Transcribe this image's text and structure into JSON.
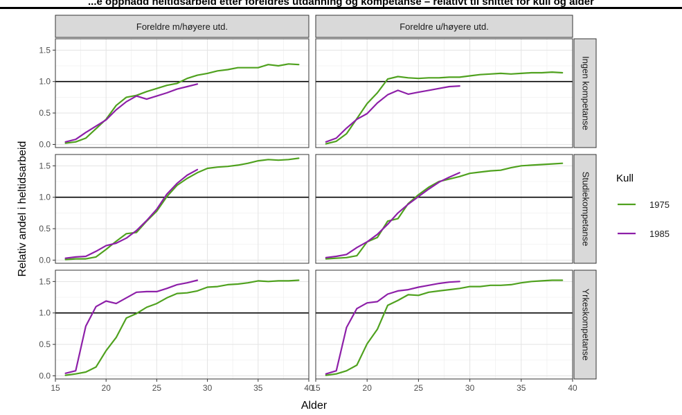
{
  "title": "...e oppnådd heltidsarbeid etter foreldres utdanning og kompetanse – relativt til snittet for kull og alder",
  "chart_data": {
    "type": "line",
    "xlabel": "Alder",
    "ylabel": "Relativ andel i heltidsarbeid",
    "xlim": [
      15,
      40
    ],
    "ylim": [
      -0.05,
      1.68
    ],
    "x_ticks": [
      "15",
      "20",
      "25",
      "30",
      "35",
      "40"
    ],
    "y_ticks": [
      "0.0",
      "0.5",
      "1.0",
      "1.5"
    ],
    "reference_line": 1.0,
    "grid": true,
    "column_facets": [
      "Foreldre m/høyere utd.",
      "Foreldre u/høyere utd."
    ],
    "row_facets": [
      "Ingen kompetanse",
      "Studiekompetanse",
      "Yrkeskompetanse"
    ],
    "legend": {
      "title": "Kull",
      "placement": "right",
      "entries": [
        {
          "label": "1975",
          "color": "#4fa11e"
        },
        {
          "label": "1985",
          "color": "#8d1fa8"
        }
      ]
    },
    "panels": [
      {
        "row": 0,
        "col": 0,
        "series": [
          {
            "name": "1975",
            "x": [
              16,
              17,
              18,
              19,
              20,
              21,
              22,
              23,
              24,
              25,
              26,
              27,
              28,
              29,
              30,
              31,
              32,
              33,
              34,
              35,
              36,
              37,
              38,
              39
            ],
            "y": [
              0.02,
              0.04,
              0.1,
              0.25,
              0.4,
              0.62,
              0.75,
              0.78,
              0.84,
              0.89,
              0.94,
              0.97,
              1.05,
              1.1,
              1.13,
              1.17,
              1.19,
              1.22,
              1.22,
              1.22,
              1.27,
              1.25,
              1.28,
              1.27
            ]
          },
          {
            "name": "1985",
            "x": [
              16,
              17,
              18,
              19,
              20,
              21,
              22,
              23,
              24,
              25,
              26,
              27,
              28,
              29
            ],
            "y": [
              0.04,
              0.08,
              0.19,
              0.29,
              0.39,
              0.55,
              0.68,
              0.77,
              0.72,
              0.77,
              0.82,
              0.88,
              0.92,
              0.96
            ]
          }
        ]
      },
      {
        "row": 0,
        "col": 1,
        "series": [
          {
            "name": "1975",
            "x": [
              16,
              17,
              18,
              19,
              20,
              21,
              22,
              23,
              24,
              25,
              26,
              27,
              28,
              29,
              30,
              31,
              32,
              33,
              34,
              35,
              36,
              37,
              38,
              39
            ],
            "y": [
              0.01,
              0.05,
              0.17,
              0.41,
              0.65,
              0.82,
              1.04,
              1.08,
              1.06,
              1.05,
              1.06,
              1.06,
              1.07,
              1.07,
              1.09,
              1.11,
              1.12,
              1.13,
              1.12,
              1.13,
              1.14,
              1.14,
              1.15,
              1.14
            ]
          },
          {
            "name": "1985",
            "x": [
              16,
              17,
              18,
              19,
              20,
              21,
              22,
              23,
              24,
              25,
              26,
              27,
              28,
              29
            ],
            "y": [
              0.04,
              0.1,
              0.26,
              0.4,
              0.49,
              0.66,
              0.79,
              0.86,
              0.8,
              0.83,
              0.86,
              0.89,
              0.92,
              0.93
            ]
          }
        ]
      },
      {
        "row": 1,
        "col": 0,
        "series": [
          {
            "name": "1975",
            "x": [
              16,
              17,
              18,
              19,
              20,
              21,
              22,
              23,
              24,
              25,
              26,
              27,
              28,
              29,
              30,
              31,
              32,
              33,
              34,
              35,
              36,
              37,
              38,
              39
            ],
            "y": [
              0.01,
              0.02,
              0.02,
              0.05,
              0.17,
              0.3,
              0.42,
              0.44,
              0.62,
              0.78,
              1.01,
              1.19,
              1.3,
              1.39,
              1.46,
              1.48,
              1.49,
              1.51,
              1.54,
              1.58,
              1.6,
              1.59,
              1.6,
              1.62
            ]
          },
          {
            "name": "1985",
            "x": [
              16,
              17,
              18,
              19,
              20,
              21,
              22,
              23,
              24,
              25,
              26,
              27,
              28,
              29
            ],
            "y": [
              0.03,
              0.05,
              0.06,
              0.14,
              0.23,
              0.27,
              0.35,
              0.47,
              0.63,
              0.81,
              1.05,
              1.22,
              1.35,
              1.44
            ]
          }
        ]
      },
      {
        "row": 1,
        "col": 1,
        "series": [
          {
            "name": "1975",
            "x": [
              16,
              17,
              18,
              19,
              20,
              21,
              22,
              23,
              24,
              25,
              26,
              27,
              28,
              29,
              30,
              31,
              32,
              33,
              34,
              35,
              36,
              37,
              38,
              39
            ],
            "y": [
              0.02,
              0.03,
              0.04,
              0.07,
              0.29,
              0.36,
              0.62,
              0.66,
              0.9,
              1.04,
              1.16,
              1.25,
              1.29,
              1.33,
              1.38,
              1.4,
              1.42,
              1.43,
              1.47,
              1.5,
              1.51,
              1.52,
              1.53,
              1.54
            ]
          },
          {
            "name": "1985",
            "x": [
              16,
              17,
              18,
              19,
              20,
              21,
              22,
              23,
              24,
              25,
              26,
              27,
              28,
              29
            ],
            "y": [
              0.04,
              0.06,
              0.09,
              0.2,
              0.29,
              0.41,
              0.57,
              0.75,
              0.89,
              1.01,
              1.13,
              1.24,
              1.32,
              1.39
            ]
          }
        ]
      },
      {
        "row": 2,
        "col": 0,
        "series": [
          {
            "name": "1975",
            "x": [
              16,
              17,
              18,
              19,
              20,
              21,
              22,
              23,
              24,
              25,
              26,
              27,
              28,
              29,
              30,
              31,
              32,
              33,
              34,
              35,
              36,
              37,
              38,
              39
            ],
            "y": [
              0.01,
              0.03,
              0.06,
              0.14,
              0.4,
              0.61,
              0.92,
              0.99,
              1.09,
              1.15,
              1.24,
              1.31,
              1.32,
              1.35,
              1.41,
              1.42,
              1.45,
              1.46,
              1.48,
              1.51,
              1.5,
              1.51,
              1.51,
              1.52
            ]
          },
          {
            "name": "1985",
            "x": [
              16,
              17,
              18,
              19,
              20,
              21,
              22,
              23,
              24,
              25,
              26,
              27,
              28,
              29
            ],
            "y": [
              0.04,
              0.08,
              0.79,
              1.1,
              1.19,
              1.15,
              1.24,
              1.33,
              1.34,
              1.34,
              1.39,
              1.45,
              1.48,
              1.52
            ]
          }
        ]
      },
      {
        "row": 2,
        "col": 1,
        "series": [
          {
            "name": "1975",
            "x": [
              16,
              17,
              18,
              19,
              20,
              21,
              22,
              23,
              24,
              25,
              26,
              27,
              28,
              29,
              30,
              31,
              32,
              33,
              34,
              35,
              36,
              37,
              38,
              39
            ],
            "y": [
              0.01,
              0.03,
              0.08,
              0.17,
              0.51,
              0.74,
              1.12,
              1.2,
              1.29,
              1.28,
              1.33,
              1.35,
              1.37,
              1.39,
              1.42,
              1.42,
              1.44,
              1.44,
              1.45,
              1.48,
              1.5,
              1.51,
              1.52,
              1.52
            ]
          },
          {
            "name": "1985",
            "x": [
              16,
              17,
              18,
              19,
              20,
              21,
              22,
              23,
              24,
              25,
              26,
              27,
              28,
              29
            ],
            "y": [
              0.03,
              0.08,
              0.77,
              1.07,
              1.16,
              1.18,
              1.3,
              1.35,
              1.37,
              1.41,
              1.44,
              1.47,
              1.49,
              1.5
            ]
          }
        ]
      }
    ]
  }
}
